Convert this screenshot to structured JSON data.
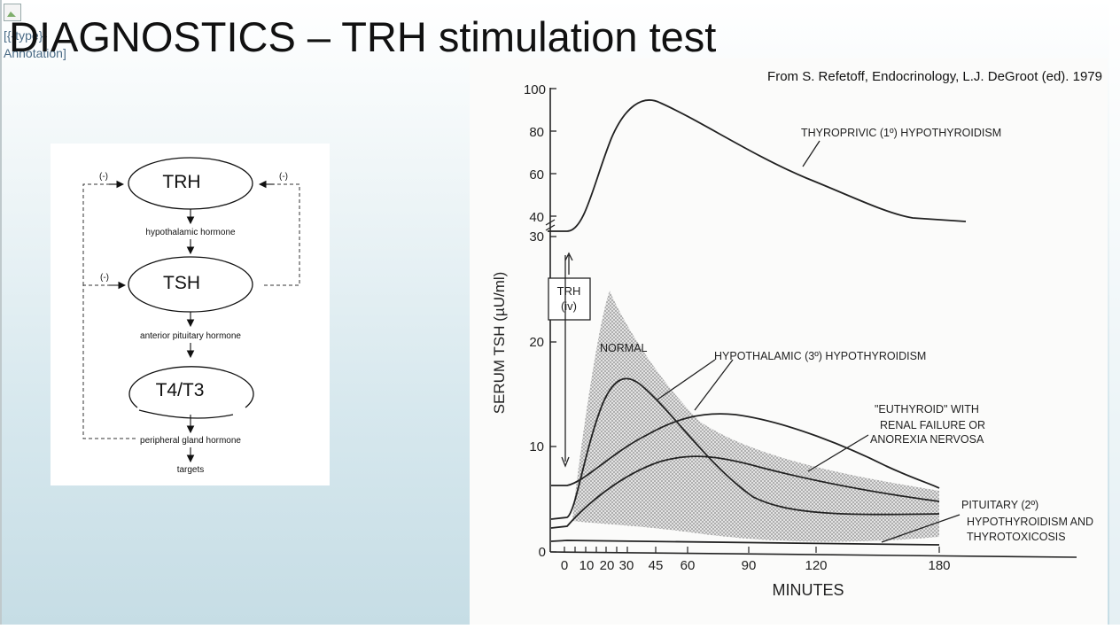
{
  "slide": {
    "title": "DIAGNOSTICS – TRH stimulation test",
    "broken_image_alt": "[{{type}} Annotation]"
  },
  "feedback_diagram": {
    "nodes": [
      {
        "label": "TRH",
        "caption": "hypothalamic hormone"
      },
      {
        "label": "TSH",
        "caption": "anterior pituitary hormone"
      },
      {
        "label": "T4/T3",
        "caption": "peripheral gland hormone"
      }
    ],
    "final_caption": "targets",
    "inhibition_label": "(-)"
  },
  "tsh_graph": {
    "source": "From S. Refetoff, Endocrinology, L.J. DeGroot (ed). 1979",
    "ylabel": "SERUM TSH (µU/ml)",
    "xlabel": "MINUTES",
    "y_ticks_low": [
      "0",
      "10",
      "20",
      "30"
    ],
    "y_ticks_high": [
      "40",
      "60",
      "80",
      "100"
    ],
    "x_ticks": [
      "0",
      "10",
      "20",
      "30",
      "45",
      "60",
      "90",
      "120",
      "180"
    ],
    "trh_label": [
      "TRH",
      "(iv)"
    ],
    "annotations": {
      "thyroprivic": "THYROPRIVIC (1º) HYPOTHYROIDISM",
      "normal": "NORMAL",
      "hypothalamic": "HYPOTHALAMIC (3º) HYPOTHYROIDISM",
      "euthyroid": [
        "\"EUTHYROID\" WITH",
        "RENAL FAILURE OR",
        "ANOREXIA NERVOSA"
      ],
      "pituitary": [
        "PITUITARY (2º)",
        "HYPOTHYROIDISM AND",
        "THYROTOXICOSIS"
      ]
    },
    "colors": {
      "ink": "#222222",
      "band": "#c9c9c9"
    }
  }
}
